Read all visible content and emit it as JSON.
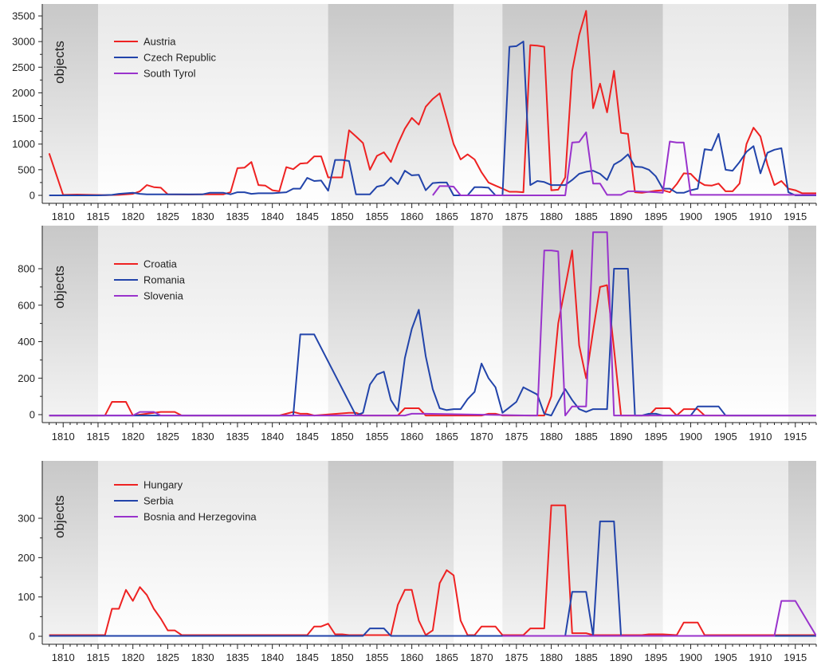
{
  "chart_data": [
    {
      "type": "line",
      "title": "",
      "xlabel": "",
      "ylabel": "objects",
      "xlim": [
        1807,
        1918
      ],
      "ylim": [
        -100,
        3600
      ],
      "yticks": [
        0,
        500,
        1000,
        1500,
        2000,
        2500,
        3000,
        3500
      ],
      "xticks": [
        1810,
        1815,
        1820,
        1825,
        1830,
        1835,
        1840,
        1845,
        1850,
        1855,
        1860,
        1865,
        1870,
        1875,
        1880,
        1885,
        1890,
        1895,
        1900,
        1905,
        1910,
        1915
      ],
      "shaded_periods": [
        [
          1807,
          1815
        ],
        [
          1848,
          1866
        ],
        [
          1873,
          1896
        ],
        [
          1914,
          1918
        ]
      ],
      "legend_position": "top-left",
      "series": [
        {
          "name": "Austria",
          "color": "#ee2222",
          "x": [
            1808,
            1810,
            1812,
            1814,
            1816,
            1818,
            1820,
            1821,
            1822,
            1823,
            1824,
            1825,
            1828,
            1830,
            1833,
            1834,
            1835,
            1836,
            1837,
            1838,
            1839,
            1840,
            1841,
            1842,
            1843,
            1844,
            1845,
            1846,
            1847,
            1848,
            1849,
            1850,
            1851,
            1852,
            1853,
            1854,
            1855,
            1856,
            1857,
            1858,
            1859,
            1860,
            1861,
            1862,
            1863,
            1864,
            1865,
            1866,
            1867,
            1868,
            1869,
            1870,
            1871,
            1872,
            1873,
            1874,
            1875,
            1876,
            1877,
            1878,
            1879,
            1880,
            1881,
            1882,
            1883,
            1884,
            1885,
            1886,
            1887,
            1888,
            1889,
            1890,
            1891,
            1892,
            1893,
            1894,
            1895,
            1896,
            1897,
            1898,
            1899,
            1900,
            1901,
            1902,
            1903,
            1904,
            1905,
            1906,
            1907,
            1908,
            1909,
            1910,
            1911,
            1912,
            1913,
            1914,
            1915,
            1916,
            1918
          ],
          "values": [
            820,
            10,
            15,
            10,
            5,
            10,
            30,
            80,
            200,
            160,
            150,
            20,
            15,
            20,
            20,
            60,
            530,
            540,
            650,
            200,
            190,
            100,
            80,
            550,
            510,
            620,
            630,
            760,
            760,
            350,
            350,
            350,
            1270,
            1150,
            1020,
            500,
            770,
            840,
            650,
            1000,
            1300,
            1510,
            1380,
            1730,
            1880,
            1990,
            1500,
            1000,
            700,
            800,
            700,
            450,
            250,
            190,
            130,
            70,
            70,
            60,
            2930,
            2920,
            2900,
            100,
            110,
            350,
            2430,
            3130,
            3600,
            1700,
            2180,
            1620,
            2430,
            1220,
            1200,
            60,
            50,
            70,
            90,
            100,
            60,
            220,
            430,
            420,
            280,
            200,
            190,
            230,
            80,
            80,
            230,
            1000,
            1320,
            1150,
            600,
            200,
            280,
            130,
            100,
            40,
            40
          ]
        },
        {
          "name": "Czech Republic",
          "color": "#2244aa",
          "x": [
            1808,
            1810,
            1815,
            1817,
            1818,
            1820,
            1821,
            1822,
            1825,
            1828,
            1830,
            1831,
            1833,
            1834,
            1835,
            1836,
            1837,
            1838,
            1840,
            1841,
            1842,
            1843,
            1844,
            1845,
            1846,
            1847,
            1848,
            1849,
            1850,
            1851,
            1852,
            1853,
            1854,
            1855,
            1856,
            1857,
            1858,
            1859,
            1860,
            1861,
            1862,
            1863,
            1864,
            1865,
            1866,
            1867,
            1868,
            1869,
            1870,
            1871,
            1872,
            1873,
            1874,
            1875,
            1876,
            1877,
            1878,
            1879,
            1880,
            1881,
            1882,
            1883,
            1884,
            1885,
            1886,
            1887,
            1888,
            1889,
            1890,
            1891,
            1892,
            1893,
            1894,
            1895,
            1896,
            1897,
            1898,
            1899,
            1900,
            1901,
            1902,
            1903,
            1904,
            1905,
            1906,
            1907,
            1908,
            1909,
            1910,
            1911,
            1912,
            1913,
            1914,
            1915,
            1916,
            1918
          ],
          "values": [
            0,
            0,
            0,
            10,
            30,
            50,
            30,
            20,
            20,
            20,
            20,
            50,
            50,
            20,
            60,
            60,
            30,
            40,
            40,
            50,
            60,
            130,
            130,
            340,
            280,
            290,
            90,
            690,
            690,
            670,
            20,
            20,
            20,
            170,
            200,
            350,
            220,
            480,
            390,
            400,
            100,
            240,
            250,
            250,
            0,
            0,
            0,
            160,
            160,
            150,
            0,
            0,
            2900,
            2910,
            3000,
            200,
            280,
            260,
            200,
            200,
            200,
            300,
            420,
            460,
            480,
            420,
            300,
            600,
            680,
            800,
            560,
            550,
            500,
            370,
            130,
            130,
            50,
            50,
            100,
            130,
            900,
            880,
            1200,
            500,
            480,
            650,
            850,
            960,
            430,
            830,
            890,
            920,
            60,
            0,
            0,
            0
          ]
        },
        {
          "name": "South Tyrol",
          "color": "#9933cc",
          "x": [
            1863,
            1864,
            1865,
            1866,
            1867,
            1868,
            1882,
            1883,
            1884,
            1885,
            1886,
            1887,
            1888,
            1889,
            1890,
            1891,
            1892,
            1895,
            1896,
            1897,
            1898,
            1899,
            1900,
            1901,
            1902,
            1905,
            1910,
            1915,
            1918
          ],
          "values": [
            0,
            180,
            180,
            170,
            0,
            0,
            0,
            1030,
            1040,
            1230,
            230,
            230,
            10,
            10,
            10,
            80,
            80,
            60,
            50,
            1050,
            1030,
            1030,
            10,
            10,
            10,
            10,
            10,
            10,
            10
          ]
        }
      ]
    },
    {
      "type": "line",
      "title": "",
      "xlabel": "",
      "ylabel": "objects",
      "xlim": [
        1807,
        1918
      ],
      "ylim": [
        -50,
        1000
      ],
      "yticks": [
        0,
        200,
        400,
        600,
        800
      ],
      "xticks": [
        1810,
        1815,
        1820,
        1825,
        1830,
        1835,
        1840,
        1845,
        1850,
        1855,
        1860,
        1865,
        1870,
        1875,
        1880,
        1885,
        1890,
        1895,
        1900,
        1905,
        1910,
        1915
      ],
      "shaded_periods": [
        [
          1807,
          1815
        ],
        [
          1848,
          1866
        ],
        [
          1873,
          1896
        ],
        [
          1914,
          1918
        ]
      ],
      "legend_position": "top-left",
      "series": [
        {
          "name": "Croatia",
          "color": "#ee2222",
          "x": [
            1808,
            1816,
            1817,
            1818,
            1819,
            1820,
            1824,
            1825,
            1826,
            1827,
            1841,
            1842,
            1843,
            1844,
            1845,
            1846,
            1851,
            1852,
            1853,
            1854,
            1858,
            1859,
            1860,
            1861,
            1862,
            1870,
            1871,
            1872,
            1873,
            1879,
            1880,
            1881,
            1882,
            1883,
            1884,
            1885,
            1886,
            1887,
            1888,
            1889,
            1890,
            1891,
            1894,
            1895,
            1896,
            1897,
            1898,
            1899,
            1900,
            1901,
            1902,
            1918
          ],
          "values": [
            -5,
            -5,
            70,
            70,
            70,
            -5,
            15,
            15,
            15,
            -5,
            -5,
            5,
            15,
            5,
            5,
            -5,
            10,
            10,
            -5,
            -5,
            -5,
            35,
            35,
            35,
            -5,
            -5,
            5,
            5,
            -5,
            -5,
            100,
            500,
            700,
            900,
            380,
            200,
            460,
            700,
            710,
            360,
            -5,
            -5,
            -5,
            35,
            35,
            35,
            -5,
            30,
            30,
            30,
            -5,
            -5
          ]
        },
        {
          "name": "Romania",
          "color": "#2244aa",
          "x": [
            1808,
            1842,
            1843,
            1844,
            1845,
            1846,
            1852,
            1853,
            1854,
            1855,
            1856,
            1857,
            1858,
            1859,
            1860,
            1861,
            1862,
            1863,
            1864,
            1865,
            1866,
            1867,
            1868,
            1869,
            1870,
            1871,
            1872,
            1873,
            1874,
            1875,
            1876,
            1877,
            1878,
            1879,
            1880,
            1881,
            1882,
            1883,
            1884,
            1885,
            1886,
            1887,
            1888,
            1889,
            1890,
            1891,
            1892,
            1893,
            1894,
            1895,
            1896,
            1900,
            1901,
            1902,
            1903,
            1904,
            1905,
            1918
          ],
          "values": [
            -5,
            -5,
            -5,
            440,
            440,
            440,
            -5,
            10,
            165,
            220,
            235,
            80,
            20,
            310,
            470,
            575,
            320,
            140,
            35,
            25,
            30,
            30,
            85,
            125,
            280,
            200,
            150,
            10,
            40,
            70,
            150,
            130,
            110,
            5,
            -5,
            70,
            140,
            80,
            30,
            15,
            30,
            30,
            30,
            800,
            800,
            800,
            -5,
            -5,
            5,
            5,
            -5,
            -5,
            45,
            45,
            45,
            45,
            -5,
            -5
          ]
        },
        {
          "name": "Slovenia",
          "color": "#9933cc",
          "x": [
            1808,
            1820,
            1821,
            1822,
            1823,
            1824,
            1859,
            1860,
            1861,
            1862,
            1877,
            1878,
            1879,
            1880,
            1881,
            1882,
            1883,
            1884,
            1885,
            1886,
            1887,
            1888,
            1889,
            1890,
            1918
          ],
          "values": [
            -5,
            -5,
            15,
            15,
            15,
            -5,
            -5,
            5,
            5,
            5,
            -5,
            -5,
            900,
            900,
            895,
            -5,
            45,
            45,
            45,
            1000,
            1000,
            1000,
            -5,
            -5,
            -5
          ]
        }
      ]
    },
    {
      "type": "line",
      "title": "",
      "xlabel": "",
      "ylabel": "objects",
      "xlim": [
        1807,
        1918
      ],
      "ylim": [
        -12,
        460
      ],
      "yticks": [
        0,
        100,
        200,
        300
      ],
      "xticks": [
        1810,
        1815,
        1820,
        1825,
        1830,
        1835,
        1840,
        1845,
        1850,
        1855,
        1860,
        1865,
        1870,
        1875,
        1880,
        1885,
        1890,
        1895,
        1900,
        1905,
        1910,
        1915
      ],
      "shaded_periods": [
        [
          1807,
          1815
        ],
        [
          1848,
          1866
        ],
        [
          1873,
          1896
        ],
        [
          1914,
          1918
        ]
      ],
      "legend_position": "top-left",
      "series": [
        {
          "name": "Hungary",
          "color": "#ee2222",
          "x": [
            1808,
            1815,
            1816,
            1817,
            1818,
            1819,
            1820,
            1821,
            1822,
            1823,
            1824,
            1825,
            1826,
            1827,
            1845,
            1846,
            1847,
            1848,
            1849,
            1850,
            1851,
            1857,
            1858,
            1859,
            1860,
            1861,
            1862,
            1863,
            1864,
            1865,
            1866,
            1867,
            1868,
            1869,
            1870,
            1871,
            1872,
            1873,
            1876,
            1877,
            1878,
            1879,
            1880,
            1881,
            1882,
            1883,
            1884,
            1885,
            1886,
            1893,
            1894,
            1895,
            1896,
            1898,
            1899,
            1900,
            1901,
            1902,
            1918
          ],
          "values": [
            3,
            3,
            3,
            70,
            70,
            118,
            90,
            125,
            105,
            70,
            45,
            15,
            15,
            3,
            3,
            25,
            25,
            32,
            5,
            5,
            3,
            3,
            80,
            118,
            118,
            40,
            3,
            15,
            135,
            168,
            155,
            40,
            3,
            3,
            25,
            25,
            25,
            3,
            3,
            20,
            20,
            20,
            333,
            333,
            333,
            8,
            8,
            8,
            3,
            3,
            5,
            5,
            5,
            3,
            35,
            35,
            35,
            3,
            3
          ]
        },
        {
          "name": "Serbia",
          "color": "#2244aa",
          "x": [
            1808,
            1853,
            1854,
            1855,
            1856,
            1857,
            1882,
            1883,
            1884,
            1885,
            1886,
            1887,
            1888,
            1889,
            1890,
            1918
          ],
          "values": [
            1,
            1,
            20,
            20,
            20,
            1,
            1,
            113,
            113,
            113,
            1,
            292,
            292,
            292,
            1,
            1
          ]
        },
        {
          "name": "Bosnia and Herzegovina",
          "color": "#9933cc",
          "x": [
            1873,
            1911,
            1912,
            1913,
            1914,
            1915,
            1918
          ],
          "values": [
            1,
            1,
            1,
            90,
            90,
            90,
            1
          ]
        }
      ]
    }
  ]
}
